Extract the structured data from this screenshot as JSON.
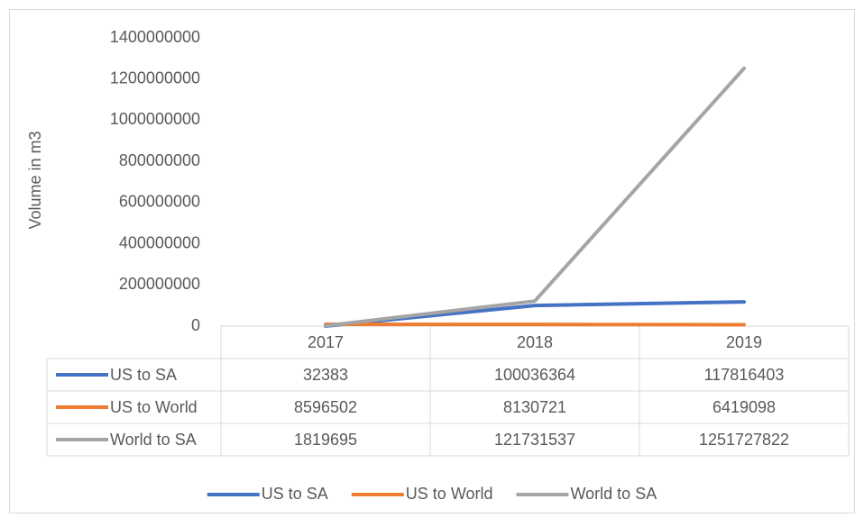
{
  "chart_data": {
    "type": "line",
    "y_axis_label": "Volume in m3",
    "categories": [
      "2017",
      "2018",
      "2019"
    ],
    "series": [
      {
        "name": "US to SA",
        "color": "#4472c4",
        "values": [
          32383,
          100036364,
          117816403
        ]
      },
      {
        "name": "US to World",
        "color": "#ed7d31",
        "values": [
          8596502,
          8130721,
          6419098
        ]
      },
      {
        "name": "World to SA",
        "color": "#a5a5a5",
        "values": [
          1819695,
          121731537,
          1251727822
        ]
      }
    ],
    "ylim": [
      0,
      1400000000
    ],
    "yticks": [
      0,
      200000000,
      400000000,
      600000000,
      800000000,
      1000000000,
      1200000000,
      1400000000
    ],
    "grid": false,
    "legend": "bottom"
  }
}
